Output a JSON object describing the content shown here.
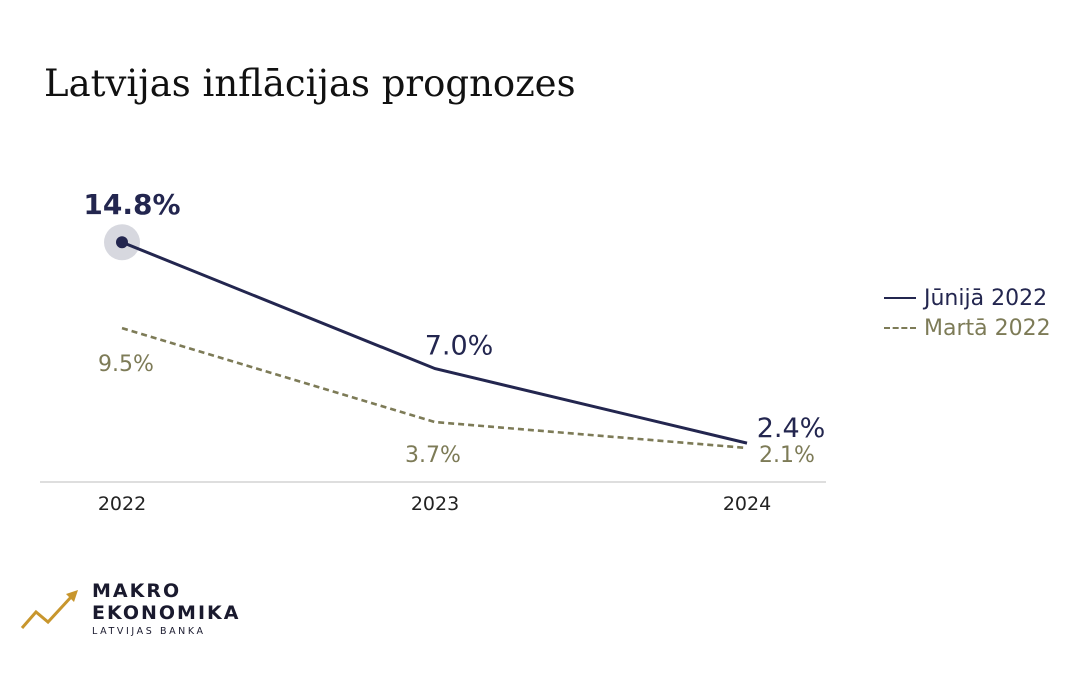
{
  "chart_data": {
    "type": "line",
    "title": "Latvijas inflācijas prognozes",
    "categories": [
      "2022",
      "2023",
      "2024"
    ],
    "series": [
      {
        "name": "Jūnijā 2022",
        "values": [
          14.8,
          7.0,
          2.4
        ],
        "labels": [
          "14.8%",
          "7.0%",
          "2.4%"
        ],
        "color": "#23264f",
        "dashed": false
      },
      {
        "name": "Martā 2022",
        "values": [
          9.5,
          3.7,
          2.1
        ],
        "labels": [
          "9.5%",
          "3.7%",
          "2.1%"
        ],
        "color": "#7d7b57",
        "dashed": true
      }
    ],
    "xlabel": "",
    "ylabel": "",
    "ylim": [
      0,
      16
    ],
    "grid": false,
    "legend": "right"
  },
  "logo": {
    "line1": "MAKRO",
    "line2": "EKONOMIKA",
    "line3": "LATVIJAS BANKA",
    "accent_color": "#c8962d"
  }
}
